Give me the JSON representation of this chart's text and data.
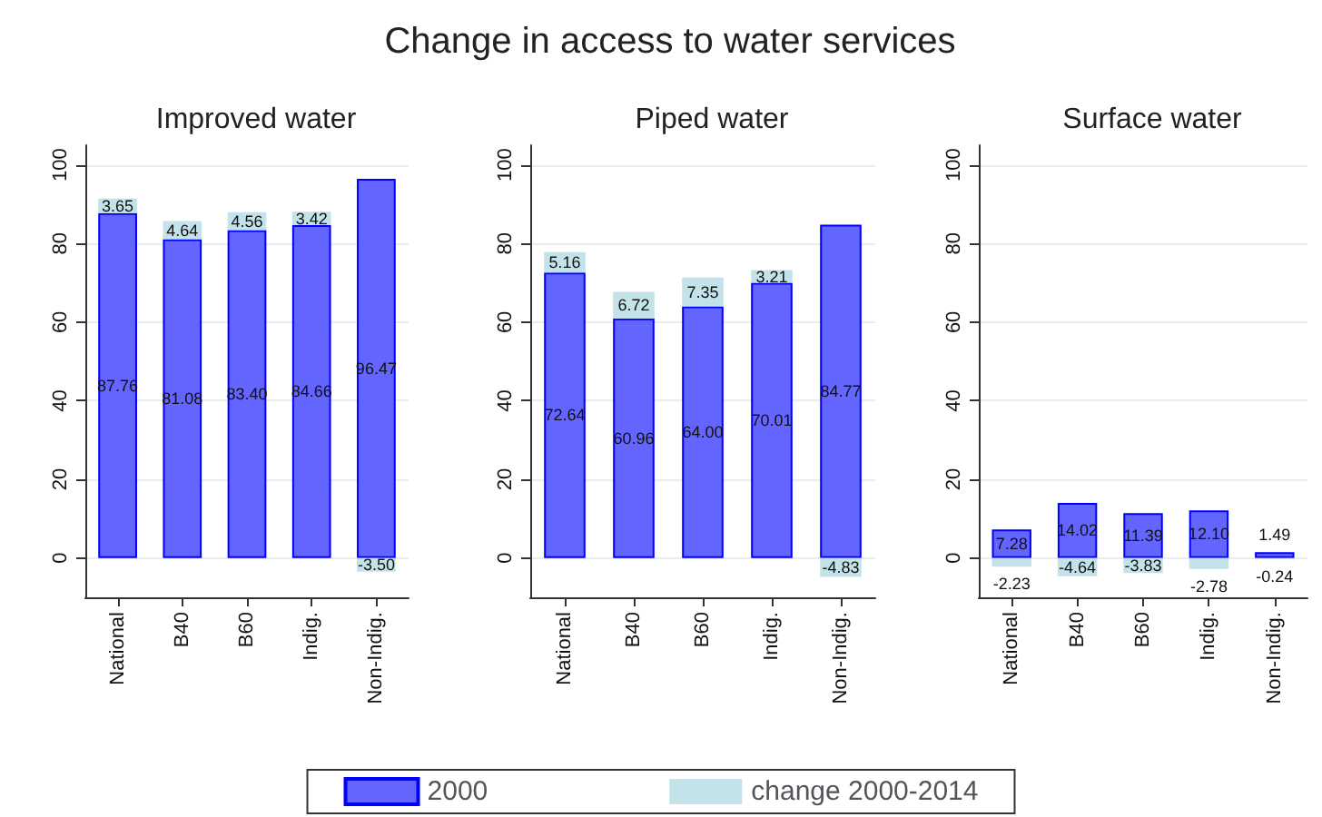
{
  "chart_data": [
    {
      "type": "bar",
      "title": "Improved water",
      "annotations": [
        "Change in access to water services"
      ],
      "categories": [
        "National",
        "B40",
        "B60",
        "Indig.",
        "Non-Indig."
      ],
      "stacked": true,
      "ylim": [
        -10,
        105
      ],
      "yticks": [
        0,
        20,
        40,
        60,
        80,
        100
      ],
      "grid": "y",
      "legend": "bottom",
      "series": [
        {
          "name": "2000",
          "color": "#6464ff",
          "values": [
            87.76,
            81.08,
            83.4,
            84.66,
            96.47
          ],
          "value_labels": [
            "87.76",
            "81.08",
            "83.40",
            "84.66",
            "96.47"
          ]
        },
        {
          "name": "change 2000-2014",
          "color": "#c4e2ea",
          "values": [
            3.65,
            4.64,
            4.56,
            3.42,
            -3.5
          ],
          "value_labels": [
            "3.65",
            "4.64",
            "4.56",
            "3.42",
            "-3.50"
          ]
        }
      ]
    },
    {
      "type": "bar",
      "title": "Piped water",
      "categories": [
        "National",
        "B40",
        "B60",
        "Indig.",
        "Non-Indig."
      ],
      "stacked": true,
      "ylim": [
        -10,
        105
      ],
      "yticks": [
        0,
        20,
        40,
        60,
        80,
        100
      ],
      "grid": "y",
      "series": [
        {
          "color": "#6464ff",
          "values": [
            72.64,
            60.96,
            64.0,
            70.01,
            84.77
          ],
          "value_labels": [
            "72.64",
            "60.96",
            "64.00",
            "70.01",
            "84.77"
          ]
        },
        {
          "color": "#c4e2ea",
          "values": [
            5.16,
            6.72,
            7.35,
            3.21,
            -4.83
          ],
          "value_labels": [
            "5.16",
            "6.72",
            "7.35",
            "3.21",
            "-4.83"
          ]
        }
      ]
    },
    {
      "type": "bar",
      "title": "Surface water",
      "categories": [
        "National",
        "B40",
        "B60",
        "Indig.",
        "Non-Indig."
      ],
      "stacked": true,
      "ylim": [
        -10,
        105
      ],
      "yticks": [
        0,
        20,
        40,
        60,
        80,
        100
      ],
      "grid": "y",
      "series": [
        {
          "color": "#6464ff",
          "values": [
            7.28,
            14.02,
            11.39,
            12.1,
            1.49
          ],
          "value_labels": [
            "7.28",
            "14.02",
            "11.39",
            "12.10",
            "1.49"
          ]
        },
        {
          "color": "#c4e2ea",
          "values": [
            -2.23,
            -4.64,
            -3.83,
            -2.78,
            -0.24
          ],
          "value_labels": [
            "-2.23",
            "-4.64",
            "-3.83",
            "-2.78",
            "-0.24"
          ]
        }
      ]
    }
  ]
}
